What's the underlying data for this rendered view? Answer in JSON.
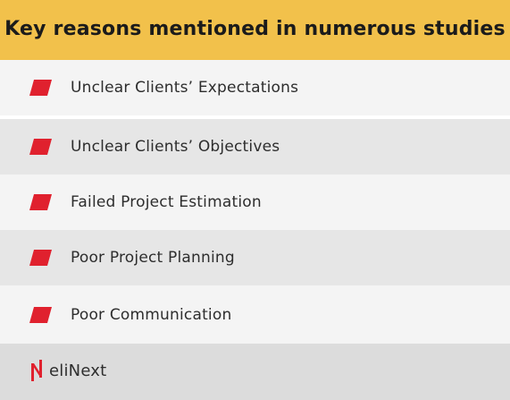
{
  "header": {
    "title": "Key reasons mentioned in numerous studies"
  },
  "reasons": [
    {
      "label": "Unclear Clients’ Expectations"
    },
    {
      "label": "Unclear Clients’ Objectives"
    },
    {
      "label": "Failed Project Estimation"
    },
    {
      "label": "Poor Project Planning"
    },
    {
      "label": "Poor Communication"
    }
  ],
  "footer": {
    "brand": "eliNext"
  },
  "colors": {
    "header_bg": "#f2c14b",
    "bullet": "#e0212e",
    "row_light": "#f4f4f4",
    "row_dark": "#e6e6e6",
    "footer_bg": "#dcdcdc"
  },
  "icons": {
    "bullet": "red-parallelogram-icon",
    "logo": "elinext-logo-icon"
  }
}
